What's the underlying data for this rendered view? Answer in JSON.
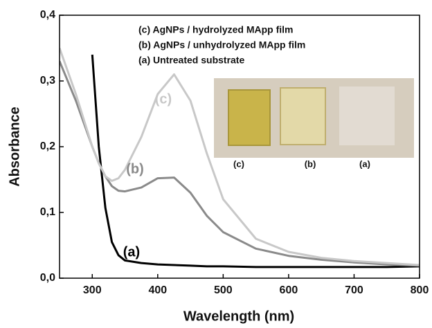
{
  "chart_data": {
    "type": "line",
    "x_label": "Wavelength (nm)",
    "y_label": "Absorbance",
    "xlim": [
      250,
      800
    ],
    "ylim": [
      0,
      0.4
    ],
    "xticks": [
      300,
      400,
      500,
      600,
      700,
      800
    ],
    "yticks": [
      {
        "value": 0,
        "label": "0,0"
      },
      {
        "value": 0.1,
        "label": "0,1"
      },
      {
        "value": 0.2,
        "label": "0,2"
      },
      {
        "value": 0.3,
        "label": "0,3"
      },
      {
        "value": 0.4,
        "label": "0,4"
      }
    ],
    "x": [
      250,
      275,
      300,
      310,
      320,
      330,
      340,
      350,
      375,
      400,
      425,
      450,
      475,
      500,
      550,
      600,
      650,
      700,
      750,
      800
    ],
    "series": [
      {
        "name": "(a) Untreated substrate",
        "color": "#000000",
        "label": "(a)",
        "values": [
          null,
          null,
          0.34,
          0.2,
          0.107,
          0.055,
          0.035,
          0.027,
          0.023,
          0.021,
          0.02,
          0.019,
          0.018,
          0.018,
          0.017,
          0.017,
          0.017,
          0.017,
          0.017,
          0.018
        ]
      },
      {
        "name": "(b) AgNPs / unhydrolyzed MApp film",
        "color": "#8a8a8a",
        "label": "(b)",
        "values": [
          0.33,
          0.27,
          0.2,
          0.175,
          0.155,
          0.14,
          0.133,
          0.132,
          0.138,
          0.152,
          0.153,
          0.13,
          0.095,
          0.07,
          0.045,
          0.034,
          0.028,
          0.024,
          0.021,
          0.019
        ]
      },
      {
        "name": "(c) AgNPs / hydrolyzed MApp film",
        "color": "#c8c8c8",
        "label": "(c)",
        "values": [
          0.35,
          0.28,
          0.2,
          0.175,
          0.155,
          0.148,
          0.152,
          0.165,
          0.215,
          0.28,
          0.31,
          0.27,
          0.19,
          0.12,
          0.06,
          0.04,
          0.031,
          0.026,
          0.023,
          0.02
        ]
      }
    ],
    "inset_labels": [
      "(c)",
      "(b)",
      "(a)"
    ]
  }
}
